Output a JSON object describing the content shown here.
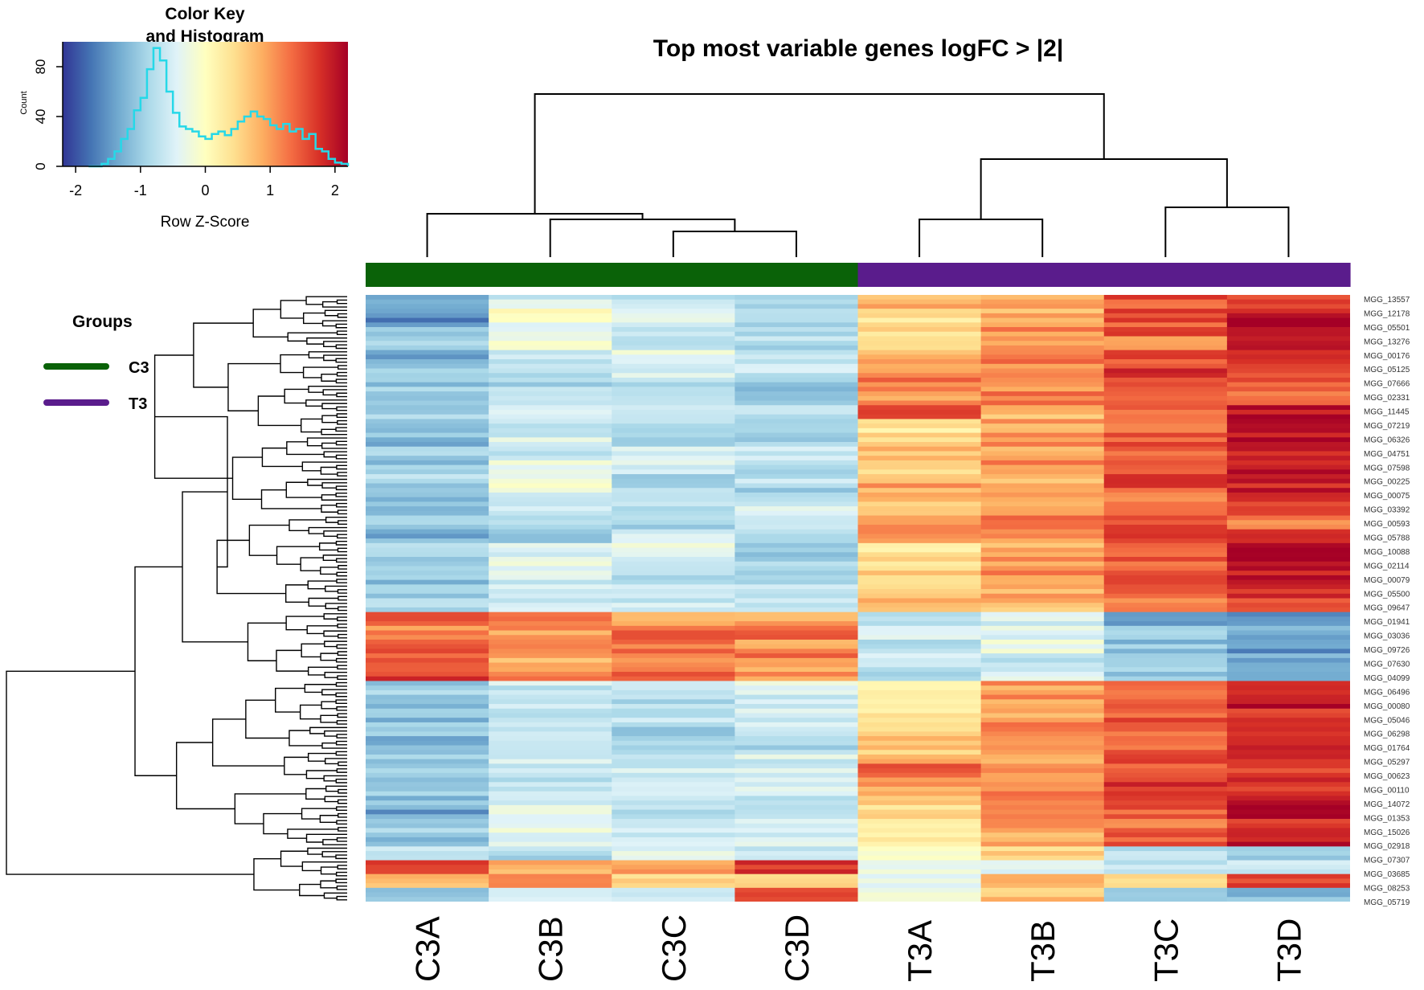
{
  "chart_data": {
    "type": "heatmap",
    "title": "Top most variable genes logFC > |2|",
    "columns": [
      "C3A",
      "C3B",
      "C3C",
      "C3D",
      "T3A",
      "T3B",
      "T3C",
      "T3D"
    ],
    "column_groups": [
      "C3",
      "C3",
      "C3",
      "C3",
      "T3",
      "T3",
      "T3",
      "T3"
    ],
    "legend": {
      "title": "Groups",
      "entries": [
        {
          "label": "C3",
          "color": "#0a6208"
        },
        {
          "label": "T3",
          "color": "#5a1c8c"
        }
      ]
    },
    "color_key": {
      "title_line1": "Color Key",
      "title_line2": "and Histogram",
      "xlabel": "Row Z-Score",
      "ylabel": "Count",
      "x_ticks": [
        "-2",
        "-1",
        "0",
        "1",
        "2"
      ],
      "y_ticks": [
        "0",
        "40",
        "80"
      ],
      "xlim": [
        -2.2,
        2.2
      ],
      "ylim": [
        0,
        100
      ],
      "histogram": [
        [
          -1.8,
          0
        ],
        [
          -1.6,
          2
        ],
        [
          -1.5,
          6
        ],
        [
          -1.4,
          12
        ],
        [
          -1.3,
          22
        ],
        [
          -1.2,
          30
        ],
        [
          -1.1,
          45
        ],
        [
          -1.0,
          55
        ],
        [
          -0.9,
          78
        ],
        [
          -0.8,
          95
        ],
        [
          -0.7,
          85
        ],
        [
          -0.6,
          60
        ],
        [
          -0.5,
          43
        ],
        [
          -0.4,
          32
        ],
        [
          -0.3,
          30
        ],
        [
          -0.2,
          28
        ],
        [
          -0.1,
          24
        ],
        [
          0.0,
          22
        ],
        [
          0.1,
          26
        ],
        [
          0.2,
          28
        ],
        [
          0.3,
          25
        ],
        [
          0.4,
          30
        ],
        [
          0.5,
          36
        ],
        [
          0.6,
          40
        ],
        [
          0.7,
          44
        ],
        [
          0.8,
          40
        ],
        [
          0.9,
          38
        ],
        [
          1.0,
          33
        ],
        [
          1.1,
          30
        ],
        [
          1.2,
          34
        ],
        [
          1.3,
          28
        ],
        [
          1.4,
          30
        ],
        [
          1.5,
          22
        ],
        [
          1.6,
          26
        ],
        [
          1.7,
          14
        ],
        [
          1.8,
          12
        ],
        [
          1.9,
          6
        ],
        [
          2.0,
          3
        ],
        [
          2.1,
          2
        ],
        [
          2.2,
          0
        ]
      ],
      "histogram_color": "#26d8e8",
      "colors": [
        "#313695",
        "#4575b4",
        "#74add1",
        "#abd9e9",
        "#e0f3f8",
        "#ffffbf",
        "#fee090",
        "#fdae61",
        "#f46d43",
        "#d73027",
        "#a50026"
      ]
    },
    "row_labels": [
      "MGG_13557",
      "MGG_12178",
      "MGG_05501",
      "MGG_13276",
      "MGG_00176",
      "MGG_05125",
      "MGG_07666",
      "MGG_02331",
      "MGG_11445",
      "MGG_07219",
      "MGG_06326",
      "MGG_04751",
      "MGG_07598",
      "MGG_00225",
      "MGG_00075",
      "MGG_03392",
      "MGG_00593",
      "MGG_05788",
      "MGG_10088",
      "MGG_02114",
      "MGG_00079",
      "MGG_05500",
      "MGG_09647",
      "MGG_01941",
      "MGG_03036",
      "MGG_09726",
      "MGG_07630",
      "MGG_04099",
      "MGG_06496",
      "MGG_00080",
      "MGG_05046",
      "MGG_06298",
      "MGG_01764",
      "MGG_05297",
      "MGG_00623",
      "MGG_00110",
      "MGG_14072",
      "MGG_01353",
      "MGG_15026",
      "MGG_02918",
      "MGG_07307",
      "MGG_03685",
      "MGG_08253",
      "MGG_05719"
    ],
    "values": [
      [
        -1.1,
        -0.6,
        -0.6,
        -0.8,
        0.8,
        1.0,
        1.5,
        1.7
      ],
      [
        -1.6,
        0.0,
        -0.2,
        -0.7,
        0.3,
        0.8,
        1.6,
        2.0
      ],
      [
        -1.2,
        -0.5,
        -0.5,
        -0.9,
        0.5,
        1.1,
        1.5,
        2.0
      ],
      [
        -1.0,
        -0.3,
        -0.7,
        -0.8,
        0.7,
        0.9,
        1.2,
        1.9
      ],
      [
        -1.3,
        -0.6,
        -0.4,
        -0.8,
        0.9,
        1.3,
        1.5,
        1.6
      ],
      [
        -1.1,
        -0.8,
        -0.6,
        -0.7,
        1.0,
        1.1,
        1.7,
        1.7
      ],
      [
        -1.0,
        -0.9,
        -0.7,
        -1.0,
        1.2,
        1.0,
        1.6,
        1.5
      ],
      [
        -0.9,
        -0.7,
        -0.8,
        -0.9,
        1.0,
        1.2,
        1.6,
        1.4
      ],
      [
        -1.0,
        -0.5,
        -0.6,
        -0.8,
        1.9,
        0.8,
        1.4,
        2.0
      ],
      [
        -1.1,
        -0.6,
        -0.7,
        -0.7,
        0.4,
        0.9,
        1.3,
        1.9
      ],
      [
        -1.2,
        -0.5,
        -0.8,
        -0.9,
        0.6,
        1.0,
        1.5,
        2.0
      ],
      [
        -1.0,
        -0.7,
        -0.6,
        -0.6,
        0.8,
        0.7,
        1.3,
        1.8
      ],
      [
        -1.1,
        -0.2,
        -0.5,
        -0.8,
        0.5,
        1.1,
        1.4,
        2.0
      ],
      [
        -0.9,
        -0.3,
        -0.9,
        -0.7,
        0.9,
        0.8,
        1.6,
        1.9
      ],
      [
        -1.2,
        -0.4,
        -0.8,
        -0.9,
        0.7,
        1.0,
        1.3,
        1.9
      ],
      [
        -1.0,
        -0.6,
        -0.7,
        -0.5,
        0.6,
        0.7,
        1.1,
        1.5
      ],
      [
        -1.1,
        -0.8,
        -1.0,
        -0.6,
        1.1,
        1.4,
        1.7,
        1.2
      ],
      [
        -1.3,
        -0.9,
        -0.6,
        -0.7,
        1.2,
        1.1,
        1.5,
        1.6
      ],
      [
        -0.8,
        -0.6,
        -0.4,
        -0.9,
        0.3,
        0.9,
        1.3,
        2.0
      ],
      [
        -1.0,
        -0.4,
        -0.6,
        -0.8,
        0.4,
        1.0,
        1.4,
        2.0
      ],
      [
        -1.1,
        -0.5,
        -0.7,
        -0.8,
        0.6,
        1.1,
        1.5,
        1.9
      ],
      [
        -0.9,
        -0.6,
        -0.5,
        -0.6,
        0.5,
        0.9,
        1.3,
        1.8
      ],
      [
        -0.8,
        -0.5,
        -0.6,
        -0.7,
        0.7,
        0.8,
        1.2,
        1.6
      ],
      [
        1.6,
        1.2,
        1.0,
        0.9,
        -0.8,
        -0.5,
        -1.3,
        -1.4
      ],
      [
        1.1,
        1.0,
        1.3,
        1.5,
        -0.6,
        -0.4,
        -1.0,
        -1.2
      ],
      [
        1.5,
        1.3,
        1.2,
        1.0,
        -0.9,
        -0.3,
        -1.1,
        -1.5
      ],
      [
        1.3,
        0.9,
        1.1,
        1.2,
        -0.7,
        -0.6,
        -1.2,
        -1.3
      ],
      [
        1.7,
        1.1,
        1.4,
        1.0,
        -0.8,
        -0.5,
        -1.0,
        -1.1
      ],
      [
        -1.0,
        -0.6,
        -0.6,
        -0.4,
        0.1,
        1.0,
        1.2,
        1.9
      ],
      [
        -1.1,
        -0.5,
        -0.8,
        -0.7,
        0.2,
        1.0,
        1.4,
        2.0
      ],
      [
        -1.2,
        -0.7,
        -0.6,
        -0.5,
        0.3,
        0.9,
        1.5,
        1.8
      ],
      [
        -1.0,
        -0.6,
        -0.9,
        -0.6,
        0.5,
        1.1,
        1.4,
        1.9
      ],
      [
        -1.3,
        -0.5,
        -0.7,
        -0.8,
        0.6,
        1.0,
        1.3,
        1.8
      ],
      [
        -1.1,
        -0.6,
        -0.8,
        -0.5,
        0.7,
        0.9,
        1.6,
        1.9
      ],
      [
        -0.9,
        -0.8,
        -0.6,
        -0.6,
        1.4,
        1.0,
        1.5,
        1.7
      ],
      [
        -1.2,
        -0.7,
        -0.7,
        -0.5,
        0.9,
        1.1,
        1.7,
        1.8
      ],
      [
        -1.1,
        -0.6,
        -0.6,
        -0.7,
        0.8,
        1.2,
        1.5,
        1.9
      ],
      [
        -1.4,
        -0.5,
        -0.8,
        -0.6,
        0.4,
        1.0,
        1.4,
        2.0
      ],
      [
        -1.0,
        -0.3,
        -0.6,
        -0.5,
        0.2,
        0.9,
        1.3,
        1.8
      ],
      [
        -1.2,
        -0.4,
        -0.7,
        -0.6,
        0.3,
        0.8,
        1.4,
        1.9
      ],
      [
        -0.6,
        -0.8,
        -0.5,
        -0.7,
        -0.2,
        0.6,
        -0.8,
        -0.9
      ],
      [
        1.5,
        0.8,
        0.9,
        1.8,
        -0.3,
        -0.6,
        -0.7,
        -0.5
      ],
      [
        0.9,
        1.1,
        0.6,
        0.7,
        -0.5,
        0.9,
        0.4,
        1.6
      ],
      [
        -1.0,
        -0.3,
        -0.6,
        1.8,
        -0.2,
        0.7,
        -0.9,
        -1.1
      ]
    ],
    "row_dendrogram_groups": [
      16,
      7,
      5,
      12,
      4
    ],
    "col_dendrogram": [
      [
        0
      ],
      [
        1
      ],
      [
        2,
        3
      ],
      [
        4,
        5
      ],
      [
        6,
        7
      ]
    ]
  }
}
